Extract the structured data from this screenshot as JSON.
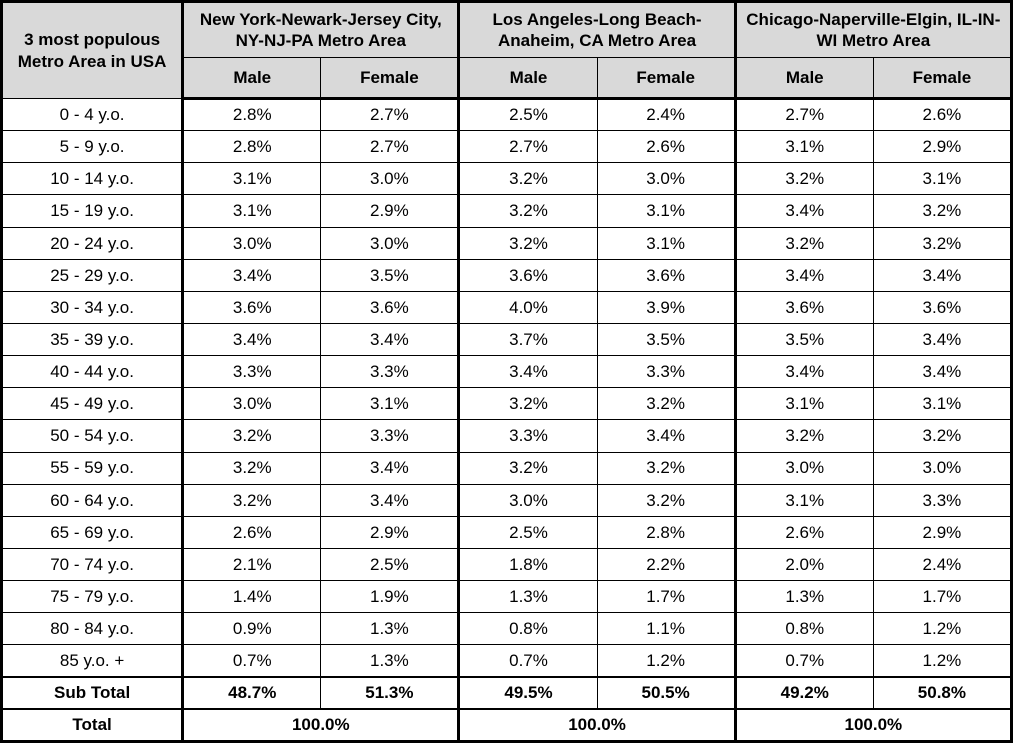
{
  "colors": {
    "header_bg": "#d9d9d9",
    "body_bg": "#ffffff",
    "border": "#000000",
    "text": "#000000"
  },
  "table": {
    "corner_header": "3 most populous Metro Area in USA",
    "group_headers": [
      "New York-Newark-Jersey City, NY-NJ-PA Metro Area",
      "Los Angeles-Long Beach-Anaheim, CA Metro Area",
      "Chicago-Naperville-Elgin, IL-IN-WI Metro Area"
    ],
    "sex_headers": [
      "Male",
      "Female"
    ],
    "age_rows": [
      {
        "label": "0 - 4 y.o.",
        "values": [
          "2.8%",
          "2.7%",
          "2.5%",
          "2.4%",
          "2.7%",
          "2.6%"
        ]
      },
      {
        "label": "5 - 9 y.o.",
        "values": [
          "2.8%",
          "2.7%",
          "2.7%",
          "2.6%",
          "3.1%",
          "2.9%"
        ]
      },
      {
        "label": "10 - 14 y.o.",
        "values": [
          "3.1%",
          "3.0%",
          "3.2%",
          "3.0%",
          "3.2%",
          "3.1%"
        ]
      },
      {
        "label": "15 - 19 y.o.",
        "values": [
          "3.1%",
          "2.9%",
          "3.2%",
          "3.1%",
          "3.4%",
          "3.2%"
        ]
      },
      {
        "label": "20 - 24 y.o.",
        "values": [
          "3.0%",
          "3.0%",
          "3.2%",
          "3.1%",
          "3.2%",
          "3.2%"
        ]
      },
      {
        "label": "25 - 29 y.o.",
        "values": [
          "3.4%",
          "3.5%",
          "3.6%",
          "3.6%",
          "3.4%",
          "3.4%"
        ]
      },
      {
        "label": "30 - 34 y.o.",
        "values": [
          "3.6%",
          "3.6%",
          "4.0%",
          "3.9%",
          "3.6%",
          "3.6%"
        ]
      },
      {
        "label": "35 - 39 y.o.",
        "values": [
          "3.4%",
          "3.4%",
          "3.7%",
          "3.5%",
          "3.5%",
          "3.4%"
        ]
      },
      {
        "label": "40 - 44 y.o.",
        "values": [
          "3.3%",
          "3.3%",
          "3.4%",
          "3.3%",
          "3.4%",
          "3.4%"
        ]
      },
      {
        "label": "45 - 49 y.o.",
        "values": [
          "3.0%",
          "3.1%",
          "3.2%",
          "3.2%",
          "3.1%",
          "3.1%"
        ]
      },
      {
        "label": "50 - 54 y.o.",
        "values": [
          "3.2%",
          "3.3%",
          "3.3%",
          "3.4%",
          "3.2%",
          "3.2%"
        ]
      },
      {
        "label": "55 - 59 y.o.",
        "values": [
          "3.2%",
          "3.4%",
          "3.2%",
          "3.2%",
          "3.0%",
          "3.0%"
        ]
      },
      {
        "label": "60 - 64 y.o.",
        "values": [
          "3.2%",
          "3.4%",
          "3.0%",
          "3.2%",
          "3.1%",
          "3.3%"
        ]
      },
      {
        "label": "65 - 69 y.o.",
        "values": [
          "2.6%",
          "2.9%",
          "2.5%",
          "2.8%",
          "2.6%",
          "2.9%"
        ]
      },
      {
        "label": "70 - 74 y.o.",
        "values": [
          "2.1%",
          "2.5%",
          "1.8%",
          "2.2%",
          "2.0%",
          "2.4%"
        ]
      },
      {
        "label": "75 - 79 y.o.",
        "values": [
          "1.4%",
          "1.9%",
          "1.3%",
          "1.7%",
          "1.3%",
          "1.7%"
        ]
      },
      {
        "label": "80 - 84 y.o.",
        "values": [
          "0.9%",
          "1.3%",
          "0.8%",
          "1.1%",
          "0.8%",
          "1.2%"
        ]
      },
      {
        "label": "85 y.o. +",
        "values": [
          "0.7%",
          "1.3%",
          "0.7%",
          "1.2%",
          "0.7%",
          "1.2%"
        ]
      }
    ],
    "sub_total": {
      "label": "Sub Total",
      "values": [
        "48.7%",
        "51.3%",
        "49.5%",
        "50.5%",
        "49.2%",
        "50.8%"
      ]
    },
    "total": {
      "label": "Total",
      "values": [
        "100.0%",
        "100.0%",
        "100.0%"
      ]
    }
  },
  "chart_data": {
    "type": "table",
    "title": "3 most populous Metro Area in USA — population share by age group and sex",
    "unit": "%",
    "categories": [
      "0 - 4 y.o.",
      "5 - 9 y.o.",
      "10 - 14 y.o.",
      "15 - 19 y.o.",
      "20 - 24 y.o.",
      "25 - 29 y.o.",
      "30 - 34 y.o.",
      "35 - 39 y.o.",
      "40 - 44 y.o.",
      "45 - 49 y.o.",
      "50 - 54 y.o.",
      "55 - 59 y.o.",
      "60 - 64 y.o.",
      "65 - 69 y.o.",
      "70 - 74 y.o.",
      "75 - 79 y.o.",
      "80 - 84 y.o.",
      "85 y.o. +"
    ],
    "series": [
      {
        "name": "New York-Newark-Jersey City, NY-NJ-PA Metro Area — Male",
        "values": [
          2.8,
          2.8,
          3.1,
          3.1,
          3.0,
          3.4,
          3.6,
          3.4,
          3.3,
          3.0,
          3.2,
          3.2,
          3.2,
          2.6,
          2.1,
          1.4,
          0.9,
          0.7
        ],
        "sub_total": 48.7
      },
      {
        "name": "New York-Newark-Jersey City, NY-NJ-PA Metro Area — Female",
        "values": [
          2.7,
          2.7,
          3.0,
          2.9,
          3.0,
          3.5,
          3.6,
          3.4,
          3.3,
          3.1,
          3.3,
          3.4,
          3.4,
          2.9,
          2.5,
          1.9,
          1.3,
          1.3
        ],
        "sub_total": 51.3
      },
      {
        "name": "Los Angeles-Long Beach-Anaheim, CA Metro Area — Male",
        "values": [
          2.5,
          2.7,
          3.2,
          3.2,
          3.2,
          3.6,
          4.0,
          3.7,
          3.4,
          3.2,
          3.3,
          3.2,
          3.0,
          2.5,
          1.8,
          1.3,
          0.8,
          0.7
        ],
        "sub_total": 49.5
      },
      {
        "name": "Los Angeles-Long Beach-Anaheim, CA Metro Area — Female",
        "values": [
          2.4,
          2.6,
          3.0,
          3.1,
          3.1,
          3.6,
          3.9,
          3.5,
          3.3,
          3.2,
          3.4,
          3.2,
          3.2,
          2.8,
          2.2,
          1.7,
          1.1,
          1.2
        ],
        "sub_total": 50.5
      },
      {
        "name": "Chicago-Naperville-Elgin, IL-IN-WI Metro Area — Male",
        "values": [
          2.7,
          3.1,
          3.2,
          3.4,
          3.2,
          3.4,
          3.6,
          3.5,
          3.4,
          3.1,
          3.2,
          3.0,
          3.1,
          2.6,
          2.0,
          1.3,
          0.8,
          0.7
        ],
        "sub_total": 49.2
      },
      {
        "name": "Chicago-Naperville-Elgin, IL-IN-WI Metro Area — Female",
        "values": [
          2.6,
          2.9,
          3.1,
          3.2,
          3.2,
          3.4,
          3.6,
          3.4,
          3.4,
          3.1,
          3.2,
          3.0,
          3.3,
          2.9,
          2.4,
          1.7,
          1.2,
          1.2
        ],
        "sub_total": 50.8
      }
    ],
    "totals": [
      100.0,
      100.0,
      100.0
    ]
  }
}
